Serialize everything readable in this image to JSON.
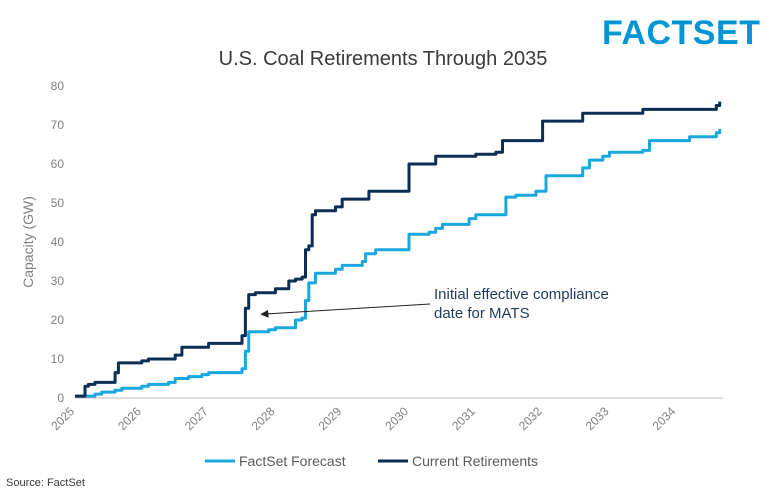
{
  "logo": {
    "text": "FACTSET",
    "color": "#0096d6"
  },
  "source": "Source: FactSet",
  "chart_data": {
    "type": "line",
    "title": "U.S. Coal Retirements Through 2035",
    "xlabel": "",
    "ylabel": "Capacity (GW)",
    "xlim": [
      2025,
      2034.7
    ],
    "ylim": [
      0,
      80
    ],
    "yticks": [
      0,
      10,
      20,
      30,
      40,
      50,
      60,
      70,
      80
    ],
    "xtick_labels": [
      "2025",
      "2026",
      "2027",
      "2028",
      "2029",
      "2030",
      "2031",
      "2032",
      "2033",
      "2034"
    ],
    "grid": false,
    "legend": "bottom",
    "series": [
      {
        "name": "FactSet Forecast",
        "color": "#1aa7e0",
        "x": [
          2025.0,
          2025.2,
          2025.3,
          2025.4,
          2025.6,
          2025.7,
          2026.0,
          2026.1,
          2026.4,
          2026.5,
          2026.7,
          2026.9,
          2027.0,
          2027.5,
          2027.55,
          2027.6,
          2027.9,
          2028.0,
          2028.3,
          2028.4,
          2028.45,
          2028.5,
          2028.6,
          2028.7,
          2028.9,
          2029.0,
          2029.3,
          2029.35,
          2029.5,
          2029.9,
          2030.0,
          2030.3,
          2030.4,
          2030.5,
          2030.9,
          2031.0,
          2031.35,
          2031.45,
          2031.6,
          2031.9,
          2032.05,
          2032.1,
          2032.6,
          2032.7,
          2032.9,
          2033.0,
          2033.5,
          2033.6,
          2034.2,
          2034.6,
          2034.65
        ],
        "y": [
          0.5,
          0.5,
          1.0,
          1.5,
          2.0,
          2.5,
          3.0,
          3.5,
          4.0,
          5.0,
          5.5,
          6.0,
          6.5,
          7.5,
          12.0,
          17.0,
          17.5,
          18.0,
          20.0,
          20.5,
          25.0,
          29.5,
          32.0,
          32.0,
          33.0,
          34.0,
          35.0,
          37.0,
          38.0,
          38.0,
          42.0,
          42.5,
          43.5,
          44.5,
          46.0,
          47.0,
          47.0,
          51.5,
          52.0,
          53.0,
          57.0,
          57.0,
          59.0,
          61.0,
          62.0,
          63.0,
          63.5,
          66.0,
          67.0,
          68.0,
          69.0
        ]
      },
      {
        "name": "Current Retirements",
        "color": "#0b2e57",
        "x": [
          2025.0,
          2025.15,
          2025.2,
          2025.3,
          2025.6,
          2025.65,
          2026.0,
          2026.1,
          2026.5,
          2026.6,
          2027.0,
          2027.5,
          2027.55,
          2027.6,
          2027.7,
          2027.9,
          2028.0,
          2028.2,
          2028.3,
          2028.4,
          2028.45,
          2028.5,
          2028.55,
          2028.6,
          2028.8,
          2028.9,
          2029.0,
          2029.3,
          2029.4,
          2029.9,
          2030.0,
          2030.3,
          2030.4,
          2030.8,
          2031.0,
          2031.3,
          2031.4,
          2031.9,
          2032.0,
          2032.5,
          2032.6,
          2033.4,
          2033.5,
          2034.0,
          2034.6,
          2034.65
        ],
        "y": [
          0.5,
          3.0,
          3.5,
          4.0,
          6.5,
          9.0,
          9.5,
          10.0,
          11.0,
          13.0,
          14.0,
          16.0,
          23.0,
          26.5,
          27.0,
          27.0,
          28.0,
          30.0,
          30.5,
          31.0,
          38.0,
          39.0,
          47.0,
          48.0,
          48.0,
          49.0,
          51.0,
          51.0,
          53.0,
          53.0,
          60.0,
          60.0,
          62.0,
          62.0,
          62.5,
          63.0,
          66.0,
          66.0,
          71.0,
          71.0,
          73.0,
          73.0,
          74.0,
          74.0,
          75.0,
          76.0
        ]
      }
    ],
    "annotations": [
      {
        "lines": [
          "Initial effective compliance",
          "date for MATS"
        ],
        "arrow_to": {
          "x": 2027.7,
          "y": 22.5
        }
      }
    ]
  }
}
